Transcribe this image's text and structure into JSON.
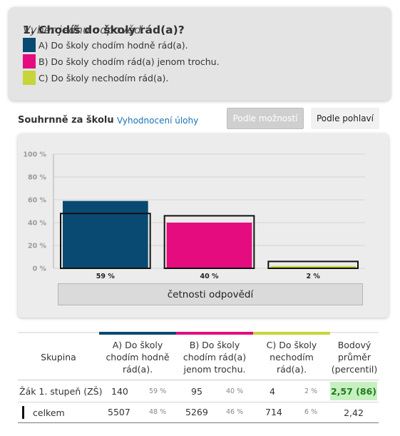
{
  "question": {
    "number_title": "1. Chodíš do školy rád(a)?",
    "instruction": "Vyber jednu odpověď.",
    "options": [
      {
        "label": "A) Do školy chodím hodně rád(a).",
        "color": "#094a73"
      },
      {
        "label": "B) Do školy chodím rád(a) jenom trochu.",
        "color": "#e40c7e"
      },
      {
        "label": "C) Do školy nechodím rád(a).",
        "color": "#c5d53a"
      }
    ]
  },
  "summary": {
    "title": "Souhrnně za školu",
    "link": "Vyhodnocení úlohy",
    "toggle_options": "Podle možností",
    "toggle_gender": "Podle pohlaví"
  },
  "chart_data": {
    "type": "bar",
    "categories": [
      "A",
      "B",
      "C"
    ],
    "series": [
      {
        "values": [
          59,
          40,
          2
        ]
      },
      {
        "values": [
          48,
          46,
          6
        ]
      }
    ],
    "value_labels": [
      "59 %",
      "40 %",
      "2 %"
    ],
    "ylim": [
      0,
      100
    ],
    "yticks": [
      "100 %",
      "80 %",
      "60 %",
      "40 %",
      "20 %",
      "0 %"
    ],
    "ytick_values": [
      100,
      80,
      60,
      40,
      20,
      0
    ],
    "colors": [
      "#094a73",
      "#e40c7e",
      "#c5d53a"
    ],
    "legend_button": "četnosti odpovědí",
    "grid": true
  },
  "table": {
    "headers": {
      "group": "Skupina",
      "a": "A) Do školy chodím hodně rád(a).",
      "b": "B) Do školy chodím rád(a) jenom trochu.",
      "c": "C) Do školy nechodím rád(a).",
      "avg": "Bodový průměr (percentil)"
    },
    "rows": [
      {
        "group": "Žák 1. stupeň (ZŠ)",
        "a": "140",
        "a_pct": "59 %",
        "b": "95",
        "b_pct": "40 %",
        "c": "4",
        "c_pct": "2 %",
        "avg": "2,57 (86)"
      },
      {
        "group": "celkem",
        "a": "5507",
        "a_pct": "48 %",
        "b": "5269",
        "b_pct": "46 %",
        "c": "714",
        "c_pct": "6 %",
        "avg": "2,42"
      }
    ]
  }
}
